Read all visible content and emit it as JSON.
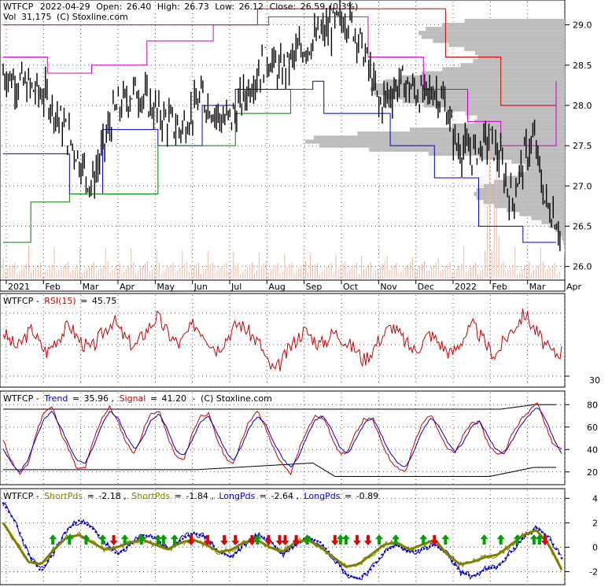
{
  "chart_data": [
    {
      "type": "candlestick",
      "header": {
        "symbol": "WTFCP",
        "date": "2022-04-29",
        "open_label": "Open:",
        "open": "26.40",
        "high_label": "High:",
        "high": "26.73",
        "low_label": "Low:",
        "low": "26.12",
        "close_label": "Close:",
        "close": "26.59",
        "change": "(0.3%)",
        "vol_label": "Vol",
        "vol": "31,175",
        "credit": "(C) Stoxline.com"
      },
      "x_ticks": [
        "2021",
        "Feb",
        "Mar",
        "Apr",
        "May",
        "Jun",
        "Jul",
        "Aug",
        "Sep",
        "Oct",
        "Nov",
        "Dec",
        "2022",
        "Feb",
        "Mar",
        "Apr"
      ],
      "y_ticks": [
        "29.0",
        "28.5",
        "28.0",
        "27.5",
        "27.0",
        "26.5",
        "26.0"
      ],
      "ylim": [
        25.85,
        29.25
      ],
      "close_trend": [
        [
          0,
          28.4
        ],
        [
          8,
          28.1
        ],
        [
          12,
          27.6
        ],
        [
          16,
          27.0
        ],
        [
          20,
          27.9
        ],
        [
          24,
          28.2
        ],
        [
          28,
          27.9
        ],
        [
          32,
          27.7
        ],
        [
          36,
          28.1
        ],
        [
          40,
          27.8
        ],
        [
          42,
          27.9
        ],
        [
          45,
          28.3
        ],
        [
          48,
          28.6
        ],
        [
          50,
          28.4
        ],
        [
          54,
          28.7
        ],
        [
          58,
          28.9
        ],
        [
          62,
          29.1
        ],
        [
          64,
          28.9
        ],
        [
          66,
          28.5
        ],
        [
          68,
          28.0
        ],
        [
          72,
          28.3
        ],
        [
          76,
          28.1
        ],
        [
          78,
          28.2
        ],
        [
          80,
          28.0
        ],
        [
          82,
          27.5
        ],
        [
          85,
          27.4
        ],
        [
          88,
          27.6
        ],
        [
          90,
          27.3
        ],
        [
          92,
          26.8
        ],
        [
          94,
          27.3
        ],
        [
          96,
          27.6
        ],
        [
          98,
          26.8
        ],
        [
          100,
          26.6
        ],
        [
          101,
          26.3
        ]
      ],
      "resistance_red": [
        [
          0,
          29.0
        ],
        [
          20,
          29.0
        ],
        [
          38,
          29.0
        ],
        [
          46,
          29.2
        ],
        [
          70,
          29.2
        ],
        [
          80,
          28.6
        ],
        [
          90,
          28.0
        ],
        [
          100,
          28.0
        ]
      ],
      "resistance_magenta": [
        [
          0,
          28.6
        ],
        [
          8,
          28.4
        ],
        [
          16,
          28.5
        ],
        [
          26,
          28.8
        ],
        [
          38,
          29.0
        ],
        [
          48,
          29.1
        ],
        [
          62,
          29.1
        ],
        [
          66,
          28.6
        ],
        [
          76,
          28.2
        ],
        [
          84,
          27.8
        ],
        [
          90,
          27.5
        ],
        [
          100,
          28.3
        ]
      ],
      "support_blue": [
        [
          0,
          27.4
        ],
        [
          12,
          26.9
        ],
        [
          18,
          27.7
        ],
        [
          28,
          27.5
        ],
        [
          36,
          28.0
        ],
        [
          42,
          28.2
        ],
        [
          56,
          28.3
        ],
        [
          58,
          27.9
        ],
        [
          70,
          27.5
        ],
        [
          78,
          27.1
        ],
        [
          86,
          26.5
        ],
        [
          94,
          26.3
        ],
        [
          100,
          26.3
        ]
      ],
      "support_green": [
        [
          0,
          26.3
        ],
        [
          5,
          26.8
        ],
        [
          12,
          26.9
        ],
        [
          28,
          27.5
        ],
        [
          42,
          27.9
        ],
        [
          52,
          28.2
        ],
        [
          56,
          28.2
        ]
      ]
    },
    {
      "type": "line",
      "label_prefix": "WTFCP -",
      "series": [
        {
          "name": "RSI(15)",
          "value": "45.75",
          "color": "#cc0000"
        }
      ],
      "y_ticks": [
        "30"
      ],
      "values": [
        58,
        52,
        48,
        55,
        60,
        50,
        45,
        52,
        57,
        63,
        55,
        50,
        47,
        54,
        60,
        66,
        58,
        52,
        49,
        56,
        62,
        68,
        60,
        54,
        50,
        57,
        63,
        59,
        53,
        47,
        52,
        58,
        64,
        60,
        55,
        50,
        38,
        33,
        40,
        48,
        54,
        59,
        55,
        50,
        53,
        58,
        55,
        50,
        47,
        40,
        45,
        52,
        58,
        62,
        56,
        50,
        46,
        51,
        57,
        53,
        48,
        44,
        50,
        57,
        62,
        55,
        48,
        43,
        51,
        58,
        64,
        70,
        62,
        55,
        48,
        44,
        46
      ]
    },
    {
      "type": "line",
      "label_prefix": "WTFCP -",
      "series": [
        {
          "name": "Trend",
          "value": "35.96",
          "color": "#0000cc"
        },
        {
          "name": "Signal",
          "value": "41.20",
          "color": "#cc0000"
        }
      ],
      "credit": "(C) Stoxline.com",
      "y_ticks": [
        "80",
        "60",
        "40",
        "20"
      ],
      "ylim": [
        10,
        90
      ],
      "trend": [
        40,
        28,
        20,
        30,
        50,
        68,
        74,
        60,
        44,
        30,
        28,
        42,
        62,
        74,
        68,
        52,
        40,
        50,
        66,
        72,
        58,
        40,
        34,
        48,
        64,
        70,
        56,
        40,
        30,
        42,
        60,
        70,
        62,
        46,
        32,
        24,
        34,
        52,
        66,
        70,
        58,
        42,
        36,
        50,
        64,
        68,
        54,
        38,
        28,
        24,
        38,
        56,
        68,
        62,
        48,
        38,
        46,
        60,
        66,
        52,
        40,
        36,
        48,
        62,
        70,
        78,
        68,
        50,
        36
      ],
      "signal": [
        48,
        30,
        18,
        26,
        54,
        74,
        78,
        56,
        40,
        22,
        24,
        48,
        68,
        78,
        64,
        46,
        36,
        56,
        72,
        74,
        52,
        34,
        30,
        54,
        70,
        72,
        50,
        34,
        26,
        48,
        66,
        74,
        58,
        40,
        26,
        18,
        40,
        58,
        70,
        68,
        52,
        36,
        38,
        56,
        68,
        66,
        48,
        32,
        24,
        20,
        44,
        62,
        72,
        58,
        42,
        36,
        52,
        64,
        64,
        46,
        36,
        38,
        54,
        66,
        74,
        84,
        62,
        44,
        41
      ],
      "upper": [
        [
          0,
          76
        ],
        [
          25,
          76
        ],
        [
          50,
          76
        ],
        [
          90,
          76
        ],
        [
          96,
          80
        ],
        [
          100,
          80
        ]
      ],
      "lower": [
        [
          0,
          22
        ],
        [
          35,
          22
        ],
        [
          56,
          28
        ],
        [
          60,
          16
        ],
        [
          88,
          16
        ],
        [
          96,
          24
        ],
        [
          100,
          24
        ]
      ]
    },
    {
      "type": "line",
      "label_prefix": "WTFCP -",
      "series": [
        {
          "name": "ShortPds",
          "value": "-2.18",
          "color": "#808000"
        },
        {
          "name": "ShortPds",
          "value": "-1.84",
          "color": "#808000"
        },
        {
          "name": "LongPds",
          "value": "-2.64",
          "color": "#0000cc"
        },
        {
          "name": "LongPds",
          "value": "-0.89",
          "color": "#0000cc"
        }
      ],
      "y_ticks": [
        "4",
        "2",
        "0",
        "-2"
      ],
      "ylim": [
        -3,
        4.6
      ],
      "long_blue": [
        3.6,
        2.0,
        -0.6,
        -2.0,
        -0.4,
        1.4,
        2.2,
        1.6,
        0.4,
        -0.6,
        0.2,
        1.0,
        0.8,
        -0.2,
        0.6,
        1.2,
        0.8,
        -0.4,
        -0.8,
        0.2,
        1.0,
        0.6,
        -0.6,
        0.2,
        0.8,
        0.4,
        -0.8,
        -2.2,
        -2.6,
        -1.8,
        -0.4,
        0.2,
        -0.4,
        -0.2,
        0.2,
        -0.6,
        -2.0,
        -2.4,
        -1.8,
        -1.6,
        -0.4,
        0.8,
        1.6,
        0.8,
        -0.9
      ],
      "short_olive": [
        2.0,
        0.4,
        -1.2,
        -1.4,
        -0.2,
        0.8,
        1.0,
        0.4,
        -0.2,
        0.0,
        0.4,
        0.6,
        0.2,
        -0.2,
        0.4,
        0.6,
        0.2,
        -0.4,
        -0.2,
        0.4,
        0.6,
        0.0,
        -0.4,
        0.4,
        0.6,
        0.0,
        -0.8,
        -1.6,
        -1.4,
        -0.6,
        0.2,
        0.4,
        -0.2,
        0.2,
        0.6,
        -0.6,
        -1.4,
        -1.2,
        -0.8,
        -0.6,
        0.2,
        1.0,
        1.4,
        0.2,
        -1.84
      ],
      "buy_signals": [
        9,
        12,
        15,
        18,
        22,
        25,
        28,
        29,
        31,
        46,
        55,
        61,
        62,
        68,
        71,
        76,
        80,
        87,
        90,
        93,
        96,
        97
      ],
      "sell_signals": [
        20,
        34,
        37,
        40,
        42,
        45,
        48,
        50,
        51,
        53,
        60,
        64,
        66,
        78,
        98
      ]
    }
  ]
}
